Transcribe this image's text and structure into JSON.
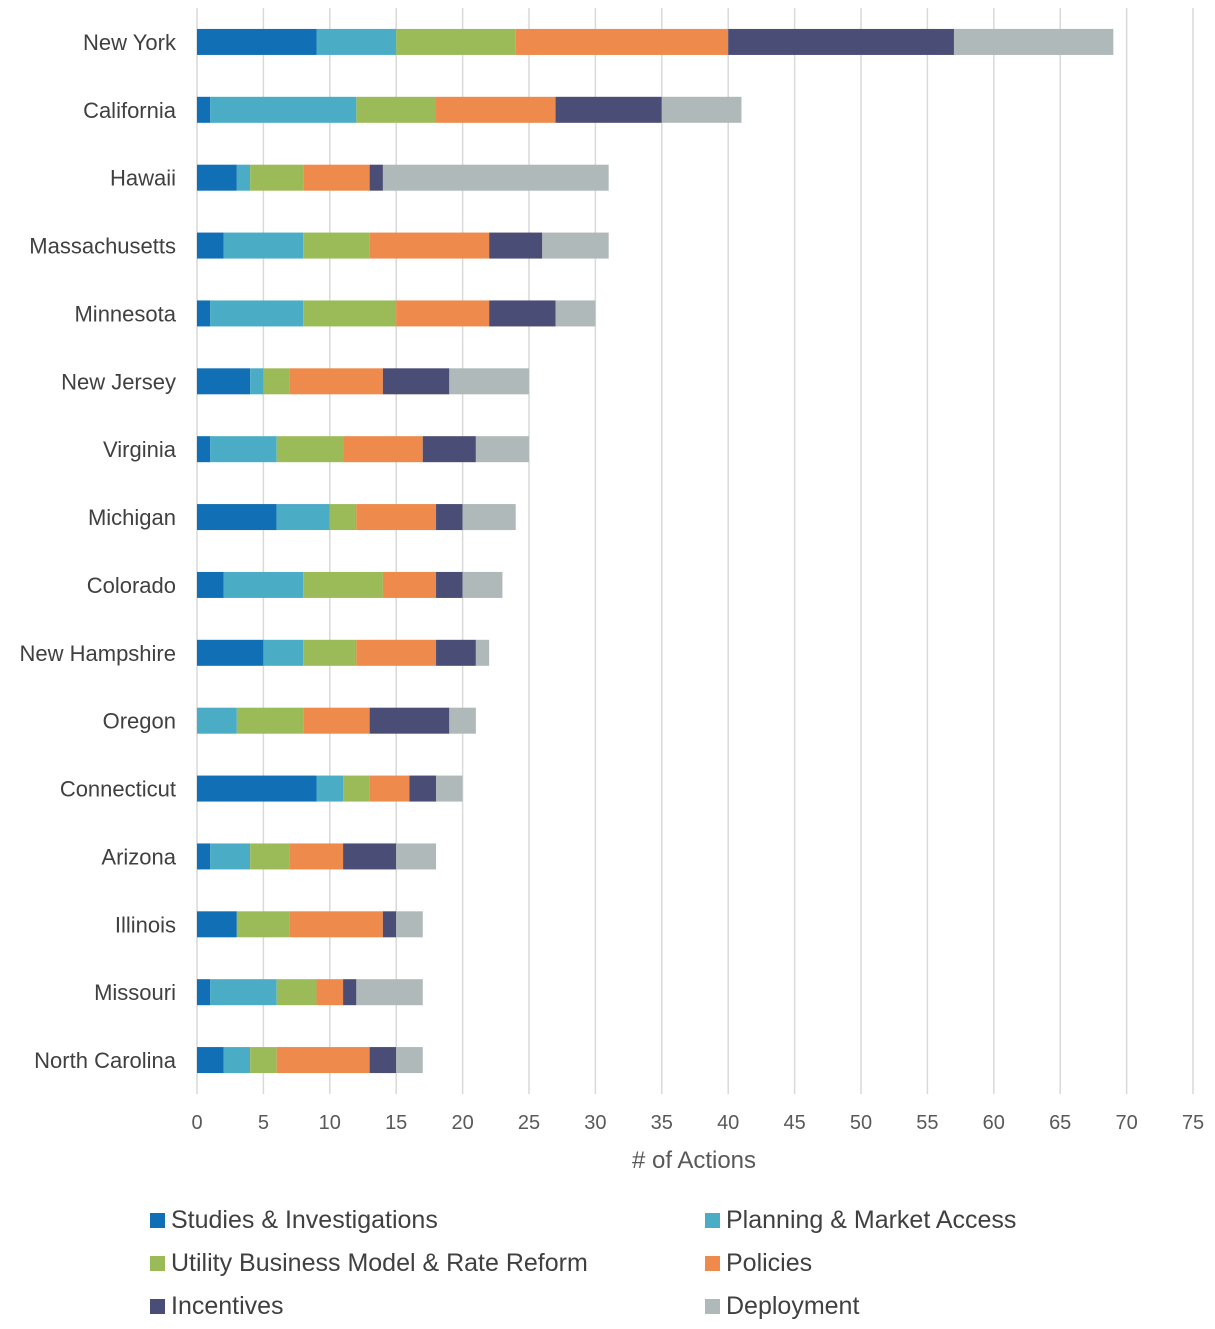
{
  "chart_data": {
    "type": "bar",
    "orientation": "horizontal",
    "stacked": true,
    "categories": [
      "New York",
      "California",
      "Hawaii",
      "Massachusetts",
      "Minnesota",
      "New Jersey",
      "Virginia",
      "Michigan",
      "Colorado",
      "New Hampshire",
      "Oregon",
      "Connecticut",
      "Arizona",
      "Illinois",
      "Missouri",
      "North Carolina"
    ],
    "series": [
      {
        "name": "Studies & Investigations",
        "color": "#1170b5",
        "values": [
          9,
          1,
          3,
          2,
          1,
          4,
          1,
          6,
          2,
          5,
          0,
          9,
          1,
          3,
          1,
          2
        ]
      },
      {
        "name": "Planning & Market Access",
        "color": "#4bacc6",
        "values": [
          6,
          11,
          1,
          6,
          7,
          1,
          5,
          4,
          6,
          3,
          3,
          2,
          3,
          0,
          5,
          2
        ]
      },
      {
        "name": "Utility Business Model & Rate Reform",
        "color": "#9bbb59",
        "values": [
          9,
          6,
          4,
          5,
          7,
          2,
          5,
          2,
          6,
          4,
          5,
          2,
          3,
          4,
          3,
          2
        ]
      },
      {
        "name": "Policies",
        "color": "#ed8a4c",
        "values": [
          16,
          9,
          5,
          9,
          7,
          7,
          6,
          6,
          4,
          6,
          5,
          3,
          4,
          7,
          2,
          7
        ]
      },
      {
        "name": "Incentives",
        "color": "#4a4d75",
        "values": [
          17,
          8,
          1,
          4,
          5,
          5,
          4,
          2,
          2,
          3,
          6,
          2,
          4,
          1,
          1,
          2
        ]
      },
      {
        "name": "Deployment",
        "color": "#b0b9b9",
        "values": [
          12,
          6,
          17,
          5,
          3,
          6,
          4,
          4,
          3,
          1,
          2,
          2,
          3,
          2,
          5,
          2
        ]
      }
    ],
    "xlabel": "# of Actions",
    "xlim": [
      0,
      75
    ],
    "xticks": [
      "0",
      "5",
      "10",
      "15",
      "20",
      "25",
      "30",
      "35",
      "40",
      "45",
      "50",
      "55",
      "60",
      "65",
      "70",
      "75"
    ],
    "grid": "vertical",
    "legend_position": "bottom"
  }
}
